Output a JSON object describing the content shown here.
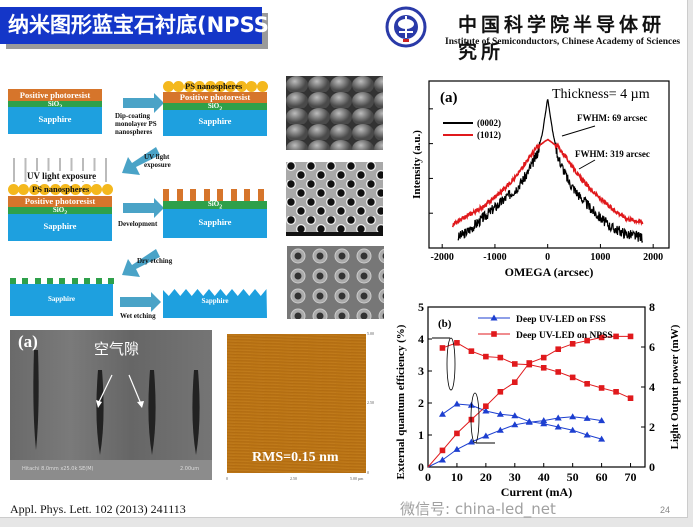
{
  "header": {
    "title": "纳米图形蓝宝石衬底(NPSS)",
    "institute_cn": "中国科学院半导体研究所",
    "institute_en": "Institute of Semiconductors, Chinese Academy of Sciences",
    "logo_icon": "cas-institute-seal"
  },
  "process": {
    "layers": {
      "photoresist": "Positive photoresist",
      "sio2": "SiO",
      "sio2_sub": "2",
      "sapphire": "Sapphire",
      "ps": "PS nanospheres",
      "uv": "UV light exposure"
    },
    "steps": [
      "Dip-coating monolayer PS nanospheres",
      "UV light exposure",
      "Development",
      "Dry etching",
      "Wet etching"
    ],
    "colors": {
      "photoresist": "#d6752b",
      "sio2": "#2ea04a",
      "sapphire": "#1ea0df",
      "nanospheres": "#f4b81d",
      "arrow": "#4aa3c7"
    }
  },
  "sem_cross": {
    "panel": "(a)",
    "annotation": "空气隙",
    "caption": "Hitachi 8.0mm x25.0k SE(M)",
    "scale": "2.00um"
  },
  "afm": {
    "rms": "RMS=0.15 nm",
    "ticks_y": [
      "5.00",
      "2.50",
      "0"
    ],
    "ticks_x": [
      "0",
      "2.50",
      "5.00 µm"
    ]
  },
  "citation": "Appl. Phys. Lett. 102 (2013) 241113",
  "page_number": "24",
  "watermark": "微信号: china-led_net",
  "chart_data": [
    {
      "type": "line",
      "panel": "(a)",
      "annotation": "Thickness= 4 µm",
      "xlabel": "OMEGA (arcsec)",
      "ylabel": "Intensity (a.u.)",
      "yscale": "log",
      "xlim": [
        -2250,
        2300
      ],
      "ylim_log10": [
        0,
        4.8
      ],
      "xticks": [
        "-2000",
        "-1000",
        "0",
        "1000",
        "2000"
      ],
      "xtick_values": [
        -2000,
        -1000,
        0,
        1000,
        2000
      ],
      "legend": "top-left",
      "fwhm_labels": [
        "FWHM: 69 arcsec",
        "FWHM: 319 arcsec"
      ],
      "series": [
        {
          "name": "(0002)",
          "color": "#000000",
          "x": [
            -1700,
            -1500,
            -1200,
            -900,
            -600,
            -400,
            -200,
            -100,
            0,
            100,
            200,
            400,
            600,
            900,
            1200,
            1500,
            1800
          ],
          "log10_y": [
            0.3,
            0.5,
            0.9,
            1.3,
            1.7,
            2.1,
            2.7,
            3.3,
            4.3,
            3.3,
            2.6,
            1.9,
            1.5,
            1.0,
            0.6,
            0.4,
            0.3
          ]
        },
        {
          "name": "(1012)",
          "name_overbar": "2",
          "color": "#e0191c",
          "x": [
            -1800,
            -1500,
            -1200,
            -900,
            -600,
            -400,
            -200,
            0,
            200,
            400,
            600,
            900,
            1200,
            1500,
            1800
          ],
          "log10_y": [
            0.65,
            0.95,
            1.2,
            1.6,
            2.05,
            2.5,
            2.9,
            3.12,
            2.9,
            2.5,
            2.05,
            1.55,
            1.15,
            0.85,
            0.74
          ]
        }
      ]
    },
    {
      "type": "line",
      "panel": "(b)",
      "xlabel": "Current (mA)",
      "ylabel_left": "External quantum efficiency (%)",
      "ylabel_right": "Light Output power (mW)",
      "xlim": [
        0,
        75
      ],
      "ylim_left": [
        0,
        5
      ],
      "ylim_right": [
        0,
        8
      ],
      "xticks": [
        "0",
        "10",
        "20",
        "30",
        "40",
        "50",
        "60",
        "70"
      ],
      "yticks_left": [
        "0",
        "1",
        "2",
        "3",
        "4",
        "5"
      ],
      "yticks_right": [
        "0",
        "2",
        "4",
        "6",
        "8"
      ],
      "legend": "top",
      "series": [
        {
          "name": "Deep UV-LED on FSS",
          "color": "#1d3fd0",
          "marker": "triangle",
          "eqe": {
            "x": [
              5,
              10,
              15,
              20,
              25,
              30,
              35,
              40,
              45,
              50,
              55,
              60
            ],
            "y": [
              1.65,
              1.97,
              1.93,
              1.75,
              1.65,
              1.6,
              1.42,
              1.35,
              1.25,
              1.15,
              1.0,
              0.87
            ]
          },
          "power": {
            "x": [
              0,
              5,
              10,
              15,
              20,
              25,
              30,
              35,
              40,
              45,
              50,
              55,
              60
            ],
            "y": [
              0,
              0.35,
              0.88,
              1.25,
              1.55,
              1.84,
              2.11,
              2.24,
              2.32,
              2.45,
              2.51,
              2.43,
              2.32
            ]
          }
        },
        {
          "name": "Deep UV-LED on NPSS",
          "color": "#e0191c",
          "marker": "square",
          "eqe": {
            "x": [
              5,
              10,
              15,
              20,
              25,
              30,
              35,
              40,
              45,
              50,
              55,
              60,
              65,
              70
            ],
            "y": [
              3.72,
              3.88,
              3.62,
              3.45,
              3.42,
              3.22,
              3.2,
              3.1,
              2.97,
              2.8,
              2.6,
              2.47,
              2.35,
              2.15
            ]
          },
          "power": {
            "x": [
              0,
              5,
              10,
              15,
              20,
              25,
              30,
              35,
              40,
              45,
              50,
              55,
              60,
              65,
              70
            ],
            "y": [
              0,
              0.83,
              1.68,
              2.37,
              3.04,
              3.76,
              4.24,
              5.2,
              5.47,
              5.89,
              6.16,
              6.32,
              6.48,
              6.53,
              6.53
            ]
          }
        }
      ]
    }
  ]
}
